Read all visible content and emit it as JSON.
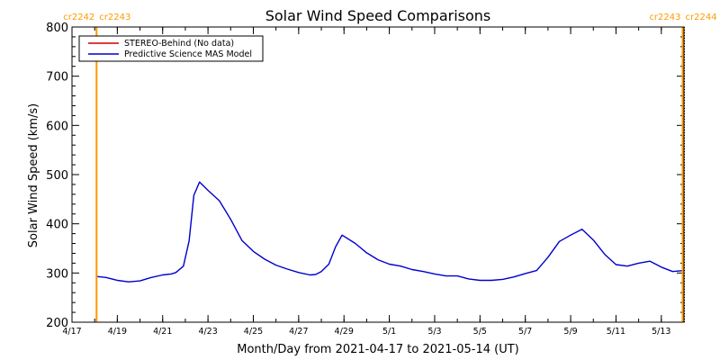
{
  "chart_data": {
    "type": "line",
    "title": "Solar Wind Speed Comparisons",
    "xlabel": "Month/Day from 2021-04-17 to 2021-05-14 (UT)",
    "ylabel": "Solar Wind Speed (km/s)",
    "xlim": [
      "2021-04-17",
      "2021-05-14"
    ],
    "ylim": [
      200,
      800
    ],
    "y_ticks": [
      200,
      300,
      400,
      500,
      600,
      700,
      800
    ],
    "x_tick_labels": [
      "4/17",
      "4/19",
      "4/21",
      "4/23",
      "4/25",
      "4/27",
      "4/29",
      "5/1",
      "5/3",
      "5/5",
      "5/7",
      "5/9",
      "5/11",
      "5/13"
    ],
    "x_tick_dates": [
      "2021-04-17",
      "2021-04-19",
      "2021-04-21",
      "2021-04-23",
      "2021-04-25",
      "2021-04-27",
      "2021-04-29",
      "2021-05-01",
      "2021-05-03",
      "2021-05-05",
      "2021-05-07",
      "2021-05-09",
      "2021-05-11",
      "2021-05-13"
    ],
    "legend": {
      "placement": "top-left"
    },
    "carrington_markers": {
      "color": "#ff9900",
      "left": {
        "date": "2021-04-18T02:00",
        "label_a": "cr2242",
        "label_b": "cr2243"
      },
      "right": {
        "date": "2021-05-14T00:00",
        "label_a": "cr2243",
        "label_b": "cr2244"
      }
    },
    "series": [
      {
        "name": "STEREO-Behind (No data)",
        "color": "#cc0000",
        "x": [],
        "y": []
      },
      {
        "name": "Predictive Science MAS Model",
        "color": "#0000cc",
        "x": [
          "2021-04-18T02:00",
          "2021-04-18T12:00",
          "2021-04-19T00:00",
          "2021-04-19T12:00",
          "2021-04-20T00:00",
          "2021-04-20T12:00",
          "2021-04-21T00:00",
          "2021-04-21T09:00",
          "2021-04-21T14:00",
          "2021-04-21T22:00",
          "2021-04-22T04:00",
          "2021-04-22T09:00",
          "2021-04-22T15:00",
          "2021-04-23T00:00",
          "2021-04-23T12:00",
          "2021-04-24T00:00",
          "2021-04-24T12:00",
          "2021-04-25T00:00",
          "2021-04-25T12:00",
          "2021-04-26T00:00",
          "2021-04-26T12:00",
          "2021-04-27T00:00",
          "2021-04-27T12:00",
          "2021-04-27T18:00",
          "2021-04-28T00:00",
          "2021-04-28T08:00",
          "2021-04-28T15:00",
          "2021-04-28T22:00",
          "2021-04-29T12:00",
          "2021-04-30T00:00",
          "2021-04-30T12:00",
          "2021-05-01T00:00",
          "2021-05-01T12:00",
          "2021-05-02T00:00",
          "2021-05-02T12:00",
          "2021-05-03T00:00",
          "2021-05-03T12:00",
          "2021-05-04T00:00",
          "2021-05-04T12:00",
          "2021-05-05T00:00",
          "2021-05-05T12:00",
          "2021-05-06T00:00",
          "2021-05-06T12:00",
          "2021-05-07T00:00",
          "2021-05-07T12:00",
          "2021-05-08T00:00",
          "2021-05-08T12:00",
          "2021-05-09T00:00",
          "2021-05-09T12:00",
          "2021-05-10T00:00",
          "2021-05-10T12:00",
          "2021-05-11T00:00",
          "2021-05-11T12:00",
          "2021-05-12T00:00",
          "2021-05-12T12:00",
          "2021-05-13T00:00",
          "2021-05-13T12:00",
          "2021-05-14T00:00"
        ],
        "y": [
          293,
          291,
          285,
          282,
          284,
          291,
          296,
          298,
          301,
          314,
          365,
          458,
          485,
          468,
          447,
          409,
          366,
          344,
          328,
          316,
          308,
          301,
          296,
          297,
          303,
          318,
          353,
          377,
          360,
          341,
          327,
          318,
          314,
          307,
          303,
          298,
          294,
          294,
          288,
          285,
          285,
          287,
          292,
          299,
          305,
          332,
          364,
          377,
          389,
          367,
          338,
          317,
          314,
          320,
          324,
          312,
          303,
          305
        ]
      }
    ]
  }
}
